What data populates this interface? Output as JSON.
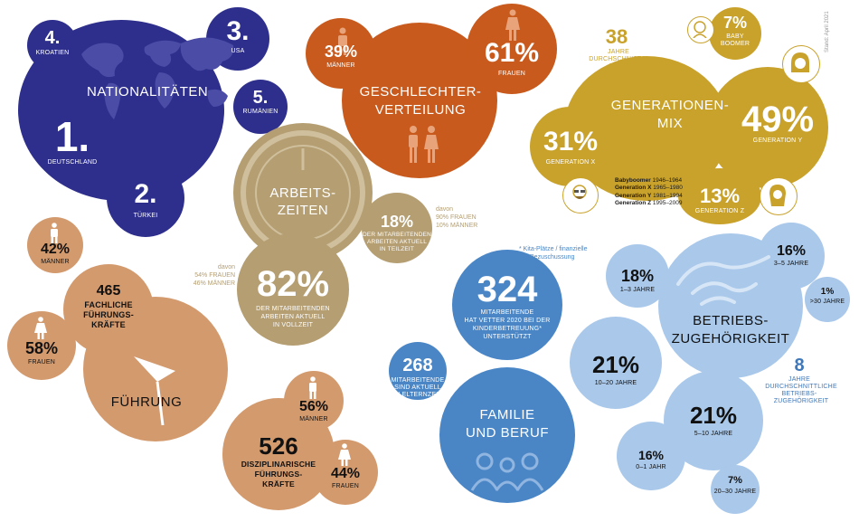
{
  "colors": {
    "navy": "#2e2f8c",
    "orange": "#c85a1d",
    "mustard": "#c9a22c",
    "khaki": "#b49e72",
    "tan": "#d39a6e",
    "blue": "#4a86c6",
    "lightblue": "#a9c8ea"
  },
  "stand": "Stand: April 2021",
  "nationalitaeten": {
    "title": "NATIONALITÄTEN",
    "items": [
      {
        "rank": "1.",
        "label": "DEUTSCHLAND"
      },
      {
        "rank": "2.",
        "label": "TÜRKEI"
      },
      {
        "rank": "3.",
        "label": "USA"
      },
      {
        "rank": "4.",
        "label": "KROATIEN"
      },
      {
        "rank": "5.",
        "label": "RUMÄNIEN"
      }
    ]
  },
  "geschlecht": {
    "title_line1": "GESCHLECHTER-",
    "title_line2": "VERTEILUNG",
    "men_value": "39%",
    "men_label": "MÄNNER",
    "women_value": "61%",
    "women_label": "FRAUEN"
  },
  "generationen": {
    "title_line1": "GENERATIONEN-",
    "title_line2": "MIX",
    "avg_value": "38",
    "avg_label_line1": "JAHRE",
    "avg_label_line2": "DURCHSCHNITTS-",
    "avg_label_line3": "ALTER",
    "boomer_value": "7%",
    "boomer_label_line1": "BABY",
    "boomer_label_line2": "BOOMER",
    "y_value": "49%",
    "y_label": "GENERATION Y",
    "x_value": "31%",
    "x_label": "GENERATION X",
    "z_value": "13%",
    "z_label": "GENERATION Z",
    "legend": [
      {
        "name": "Babyboomer",
        "years": "1946–1964"
      },
      {
        "name": "Generation X",
        "years": "1965–1980"
      },
      {
        "name": "Generation Y",
        "years": "1981–1994"
      },
      {
        "name": "Generation Z",
        "years": "1995–2009"
      }
    ]
  },
  "arbeitszeiten": {
    "title_line1": "ARBEITS-",
    "title_line2": "ZEITEN",
    "part_value": "18%",
    "part_label_line1": "DER MITARBEITENDEN",
    "part_label_line2": "ARBEITEN AKTUELL",
    "part_label_line3": "IN TEILZEIT",
    "part_note_line1": "davon",
    "part_note_line2": "90% FRAUEN",
    "part_note_line3": "10% MÄNNER",
    "full_value": "82%",
    "full_label_line1": "DER MITARBEITENDEN",
    "full_label_line2": "ARBEITEN AKTUELL",
    "full_label_line3": "IN VOLLZEIT",
    "full_note_line1": "davon",
    "full_note_line2": "54% FRAUEN",
    "full_note_line3": "46% MÄNNER"
  },
  "fuehrung": {
    "title": "FÜHRUNG",
    "men_value": "42%",
    "men_label": "MÄNNER",
    "women_value": "58%",
    "women_label": "FRAUEN",
    "fach_value": "465",
    "fach_label_line1": "FACHLICHE",
    "fach_label_line2": "FÜHRUNGS-",
    "fach_label_line3": "KRÄFTE",
    "diszi_value": "526",
    "diszi_label_line1": "DISZIPLINARISCHE",
    "diszi_label_line2": "FÜHRUNGS-",
    "diszi_label_line3": "KRÄFTE",
    "diszi_men_value": "56%",
    "diszi_men_label": "MÄNNER",
    "diszi_women_value": "44%",
    "diszi_women_label": "FRAUEN"
  },
  "familie": {
    "title_line1": "FAMILIE",
    "title_line2": "UND BERUF",
    "kita_value": "324",
    "kita_label_line1": "MITARBEITENDE",
    "kita_label_line2": "HAT VETTER 2020 BEI DER",
    "kita_label_line3": "KINDERBETREUUNG*",
    "kita_label_line4": "UNTERSTÜTZT",
    "kita_note_line1": "* Kita-Plätze / finanzielle",
    "kita_note_line2": "Bezuschussung",
    "eltern_value": "268",
    "eltern_label_line1": "MITARBEITENDE",
    "eltern_label_line2": "SIND AKTUELL",
    "eltern_label_line3": "IN ELTERNZEIT"
  },
  "zugehoerigkeit": {
    "title_line1": "BETRIEBS-",
    "title_line2": "ZUGEHÖRIGKEIT",
    "avg_value": "8",
    "avg_label_line1": "JAHRE",
    "avg_label_line2": "DURCHSCHNITTLICHE",
    "avg_label_line3": "BETRIEBS-",
    "avg_label_line4": "ZUGEHÖRIGKEIT",
    "items": [
      {
        "value": "18%",
        "label": "1–3 JAHRE"
      },
      {
        "value": "16%",
        "label": "3–5 JAHRE"
      },
      {
        "value": "1%",
        "label": ">30 JAHRE"
      },
      {
        "value": "21%",
        "label": "10–20 JAHRE"
      },
      {
        "value": "21%",
        "label": "5–10 JAHRE"
      },
      {
        "value": "16%",
        "label": "0–1 JAHR"
      },
      {
        "value": "7%",
        "label": "20–30 JAHRE"
      }
    ]
  }
}
